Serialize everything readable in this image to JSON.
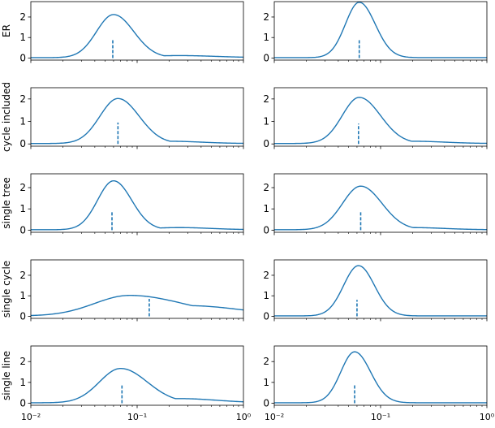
{
  "chart_data": {
    "type": "line",
    "xscale": "log",
    "xlim": [
      0.01,
      1
    ],
    "x_tick_labels": [
      "10⁻²",
      "10⁻¹",
      "10⁰"
    ],
    "y_tick_labels": [
      "0",
      "1",
      "2"
    ],
    "row_labels": [
      "ER",
      "cycle included",
      "single tree",
      "single cycle",
      "single line"
    ],
    "grid": false,
    "legend": "none",
    "line_color": "#1f77b4",
    "panels": [
      {
        "row": 0,
        "col": 0,
        "ylim": [
          -0.1,
          2.75
        ],
        "peak_x": 0.06,
        "peak_y": 2.1,
        "left_width": 0.16,
        "right_width": 0.19,
        "tail_amp": 0.1,
        "tail_center": 0.25,
        "tail_width": 0.35,
        "marker_x": 0.059,
        "marker_top": 0.9
      },
      {
        "row": 0,
        "col": 1,
        "ylim": [
          -0.1,
          2.75
        ],
        "peak_x": 0.063,
        "peak_y": 2.7,
        "left_width": 0.13,
        "right_width": 0.15,
        "tail_amp": 0.0,
        "tail_center": 0.2,
        "tail_width": 0.3,
        "marker_x": 0.063,
        "marker_top": 0.9
      },
      {
        "row": 1,
        "col": 0,
        "ylim": [
          -0.1,
          2.5
        ],
        "peak_x": 0.066,
        "peak_y": 2.0,
        "left_width": 0.17,
        "right_width": 0.2,
        "tail_amp": 0.1,
        "tail_center": 0.2,
        "tail_width": 0.3,
        "marker_x": 0.066,
        "marker_top": 0.95
      },
      {
        "row": 1,
        "col": 1,
        "ylim": [
          -0.1,
          2.5
        ],
        "peak_x": 0.063,
        "peak_y": 2.05,
        "left_width": 0.16,
        "right_width": 0.2,
        "tail_amp": 0.1,
        "tail_center": 0.2,
        "tail_width": 0.3,
        "marker_x": 0.062,
        "marker_top": 0.9
      },
      {
        "row": 2,
        "col": 0,
        "ylim": [
          -0.1,
          2.65
        ],
        "peak_x": 0.06,
        "peak_y": 2.3,
        "left_width": 0.15,
        "right_width": 0.17,
        "tail_amp": 0.1,
        "tail_center": 0.25,
        "tail_width": 0.3,
        "marker_x": 0.058,
        "marker_top": 0.9
      },
      {
        "row": 2,
        "col": 1,
        "ylim": [
          -0.1,
          2.65
        ],
        "peak_x": 0.065,
        "peak_y": 2.05,
        "left_width": 0.17,
        "right_width": 0.2,
        "tail_amp": 0.1,
        "tail_center": 0.2,
        "tail_width": 0.3,
        "marker_x": 0.065,
        "marker_top": 0.9
      },
      {
        "row": 3,
        "col": 0,
        "ylim": [
          -0.1,
          2.75
        ],
        "peak_x": 0.085,
        "peak_y": 1.0,
        "left_width": 0.33,
        "right_width": 0.5,
        "tail_amp": 0.5,
        "tail_center": 0.3,
        "tail_width": 0.5,
        "marker_x": 0.13,
        "marker_top": 0.85
      },
      {
        "row": 3,
        "col": 1,
        "ylim": [
          -0.1,
          2.75
        ],
        "peak_x": 0.062,
        "peak_y": 2.45,
        "left_width": 0.14,
        "right_width": 0.15,
        "tail_amp": 0.0,
        "tail_center": 0.2,
        "tail_width": 0.3,
        "marker_x": 0.06,
        "marker_top": 0.8
      },
      {
        "row": 4,
        "col": 0,
        "ylim": [
          -0.1,
          2.75
        ],
        "peak_x": 0.07,
        "peak_y": 1.65,
        "left_width": 0.2,
        "right_width": 0.25,
        "tail_amp": 0.2,
        "tail_center": 0.25,
        "tail_width": 0.35,
        "marker_x": 0.072,
        "marker_top": 0.85
      },
      {
        "row": 4,
        "col": 1,
        "ylim": [
          -0.1,
          2.75
        ],
        "peak_x": 0.057,
        "peak_y": 2.45,
        "left_width": 0.13,
        "right_width": 0.15,
        "tail_amp": 0.0,
        "tail_center": 0.2,
        "tail_width": 0.3,
        "marker_x": 0.057,
        "marker_top": 0.9
      }
    ]
  }
}
